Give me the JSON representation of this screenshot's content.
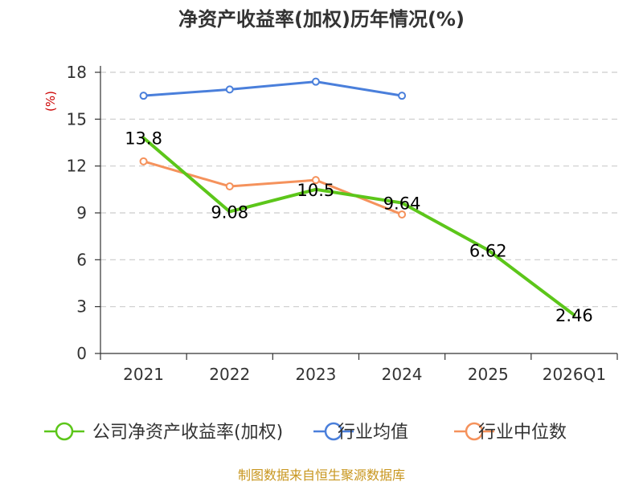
{
  "chart_data": {
    "type": "line",
    "title": "净资产收益率(加权)历年情况(%)",
    "unit_label": "(%)",
    "categories": [
      "2021",
      "2022",
      "2023",
      "2024",
      "2025",
      "2026Q1"
    ],
    "ylim": [
      0,
      18
    ],
    "yticks": [
      0,
      3,
      6,
      9,
      12,
      15,
      18
    ],
    "grid": true,
    "legend_position": "bottom",
    "series": [
      {
        "name": "公司净资产收益率(加权)",
        "color": "#5cc61a",
        "values": [
          13.8,
          9.08,
          10.5,
          9.64,
          6.62,
          2.46
        ],
        "labels": [
          "13.8",
          "9.08",
          "10.5",
          "9.64",
          "6.62",
          "2.46"
        ],
        "show_markers": false
      },
      {
        "name": "行业均值",
        "color": "#4a7fdb",
        "values": [
          16.5,
          16.9,
          17.4,
          16.5,
          null,
          null
        ],
        "show_markers": true
      },
      {
        "name": "行业中位数",
        "color": "#f5925c",
        "values": [
          12.3,
          10.7,
          11.1,
          8.9,
          null,
          null
        ],
        "show_markers": true
      }
    ],
    "source": "制图数据来自恒生聚源数据库"
  }
}
